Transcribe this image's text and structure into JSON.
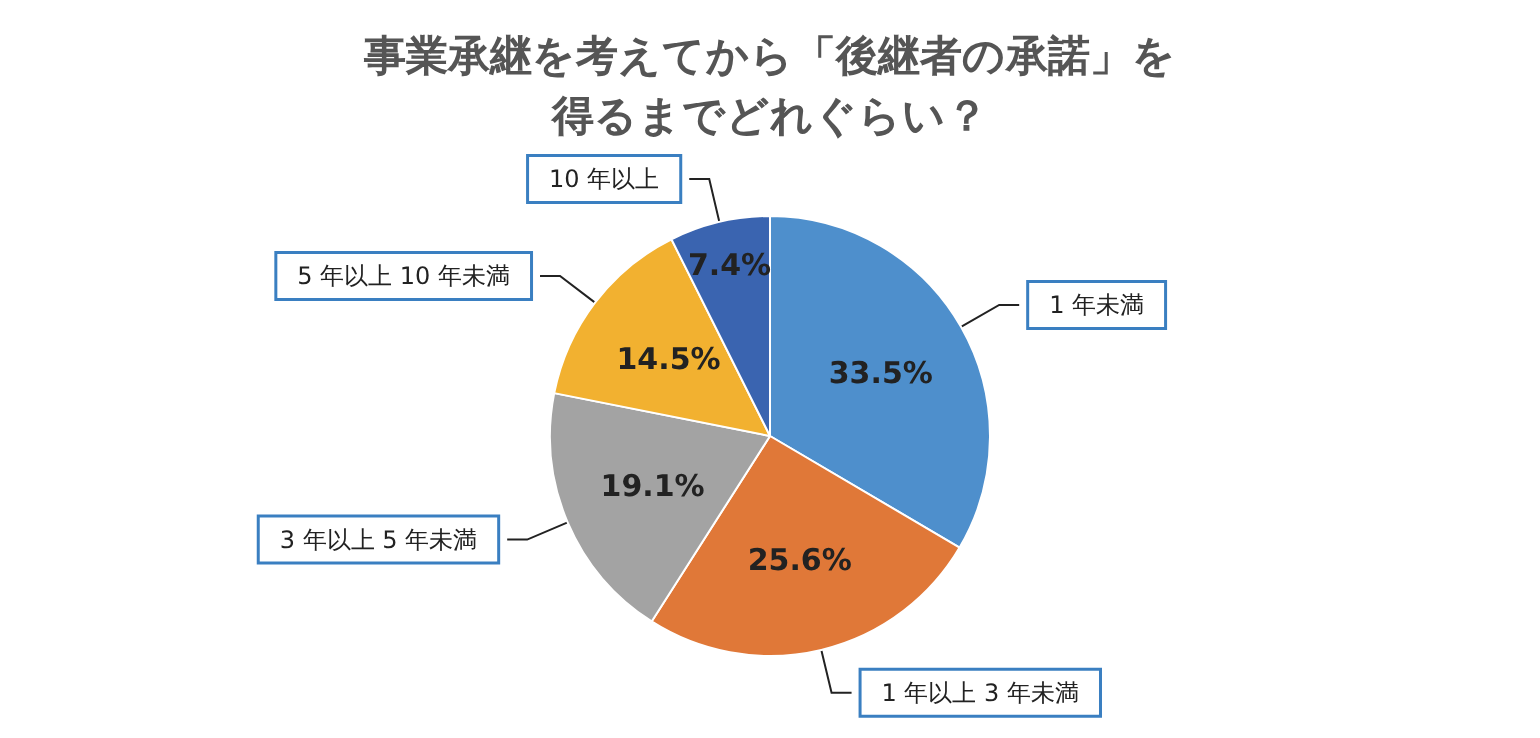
{
  "chart_data": {
    "type": "pie",
    "title": "事業承継を考えてから「後継者の承諾」を得るまでどれぐらい？",
    "categories": [
      "1 年未満",
      "1 年以上 3 年未満",
      "3 年以上 5 年未満",
      "5 年以上 10 年未満",
      "10 年以上"
    ],
    "values": [
      33.5,
      25.6,
      19.1,
      14.5,
      7.4
    ],
    "value_labels": [
      "33.5%",
      "25.6%",
      "19.1%",
      "14.5%",
      "7.4%"
    ],
    "colors": [
      "#4e8fcc",
      "#e07838",
      "#a3a3a3",
      "#f2b130",
      "#3a64b0"
    ],
    "legend": false
  }
}
